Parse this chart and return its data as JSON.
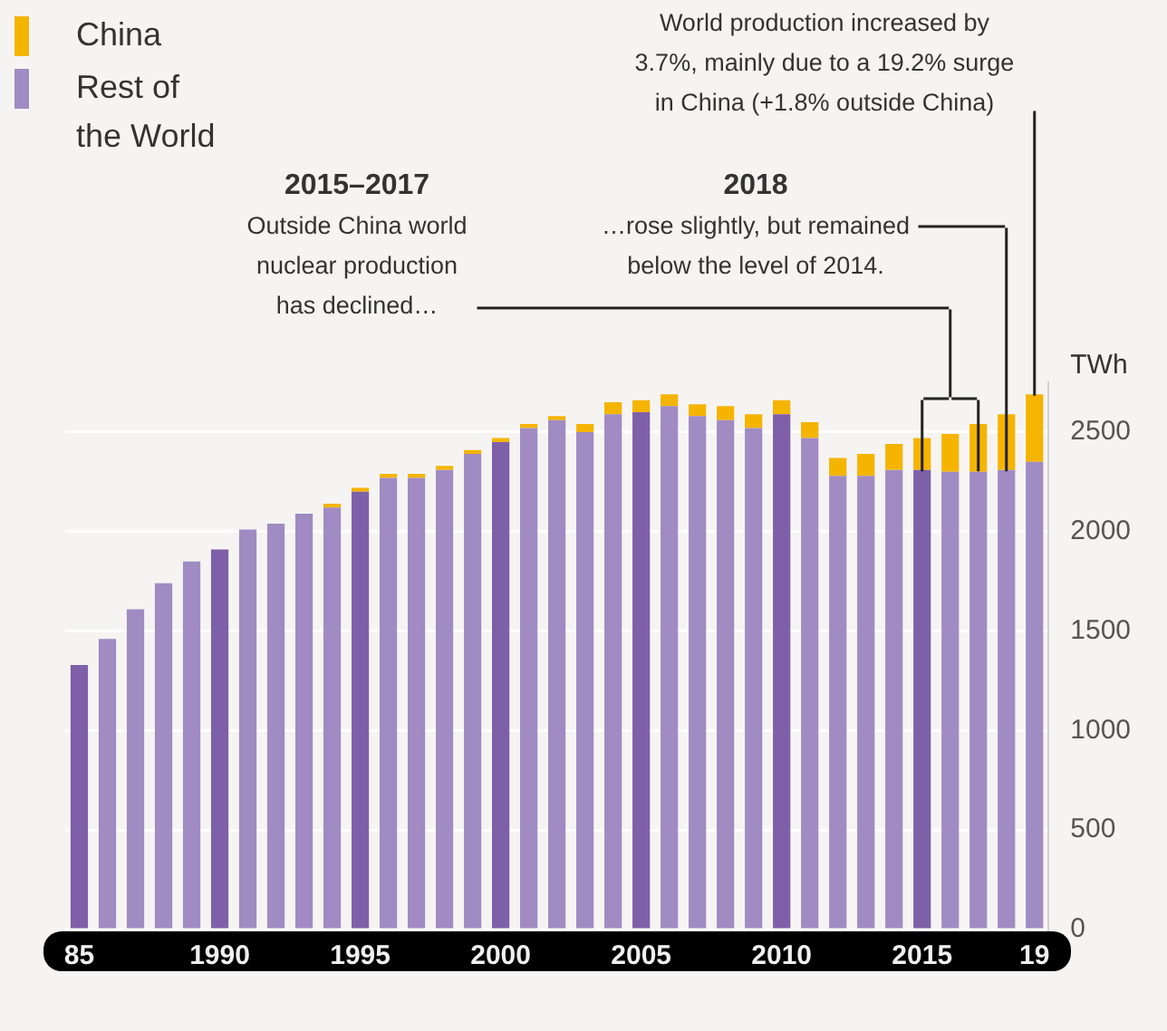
{
  "chart_data": {
    "type": "bar",
    "stacked": true,
    "ylabel": "TWh",
    "categories": [
      "85",
      null,
      null,
      null,
      null,
      "1990",
      null,
      null,
      null,
      null,
      "1995",
      null,
      null,
      null,
      null,
      "2000",
      null,
      null,
      null,
      null,
      "2005",
      null,
      null,
      null,
      null,
      "2010",
      null,
      null,
      null,
      null,
      "2015",
      null,
      null,
      null,
      "19"
    ],
    "series": [
      {
        "name": "Rest of the World",
        "colors": [
          "#7e60a8",
          "#a08bc2",
          "#a08bc2",
          "#a08bc2",
          "#a08bc2",
          "#7e60a8",
          "#a08bc2",
          "#a08bc2",
          "#a08bc2",
          "#a08bc2",
          "#7e60a8",
          "#a08bc2",
          "#a08bc2",
          "#a08bc2",
          "#a08bc2",
          "#7e60a8",
          "#a08bc2",
          "#a08bc2",
          "#a08bc2",
          "#a08bc2",
          "#7e60a8",
          "#a08bc2",
          "#a08bc2",
          "#a08bc2",
          "#a08bc2",
          "#7e60a8",
          "#a08bc2",
          "#a08bc2",
          "#a08bc2",
          "#a08bc2",
          "#7e60a8",
          "#a08bc2",
          "#a08bc2",
          "#a08bc2",
          "#a08bc2"
        ],
        "color": "#a08bc2",
        "values": [
          1330,
          1460,
          1610,
          1740,
          1850,
          1910,
          2010,
          2040,
          2090,
          2120,
          2200,
          2270,
          2270,
          2310,
          2390,
          2450,
          2520,
          2560,
          2500,
          2590,
          2600,
          2630,
          2580,
          2560,
          2520,
          2590,
          2470,
          2280,
          2280,
          2310,
          2310,
          2300,
          2300,
          2310,
          2350
        ]
      },
      {
        "name": "China",
        "color": "#f5b400",
        "values": [
          0,
          0,
          0,
          0,
          0,
          0,
          0,
          0,
          0,
          20,
          20,
          20,
          20,
          20,
          20,
          20,
          20,
          20,
          40,
          60,
          60,
          60,
          60,
          70,
          70,
          70,
          80,
          90,
          110,
          130,
          160,
          190,
          240,
          280,
          340
        ]
      }
    ],
    "ylim": [
      0,
      2750
    ],
    "yticks": [
      0,
      500,
      1000,
      1500,
      2000,
      2500
    ],
    "grid": "y",
    "legend": "top left",
    "annotations": [
      "2015–2017",
      "Outside China world nuclear production has declined…",
      "2018",
      "…rose slightly, but remained below the level of 2014.",
      "World production increased by 3.7%, mainly due to a 19.2% surge in China (+1.8% outside China)"
    ]
  }
}
